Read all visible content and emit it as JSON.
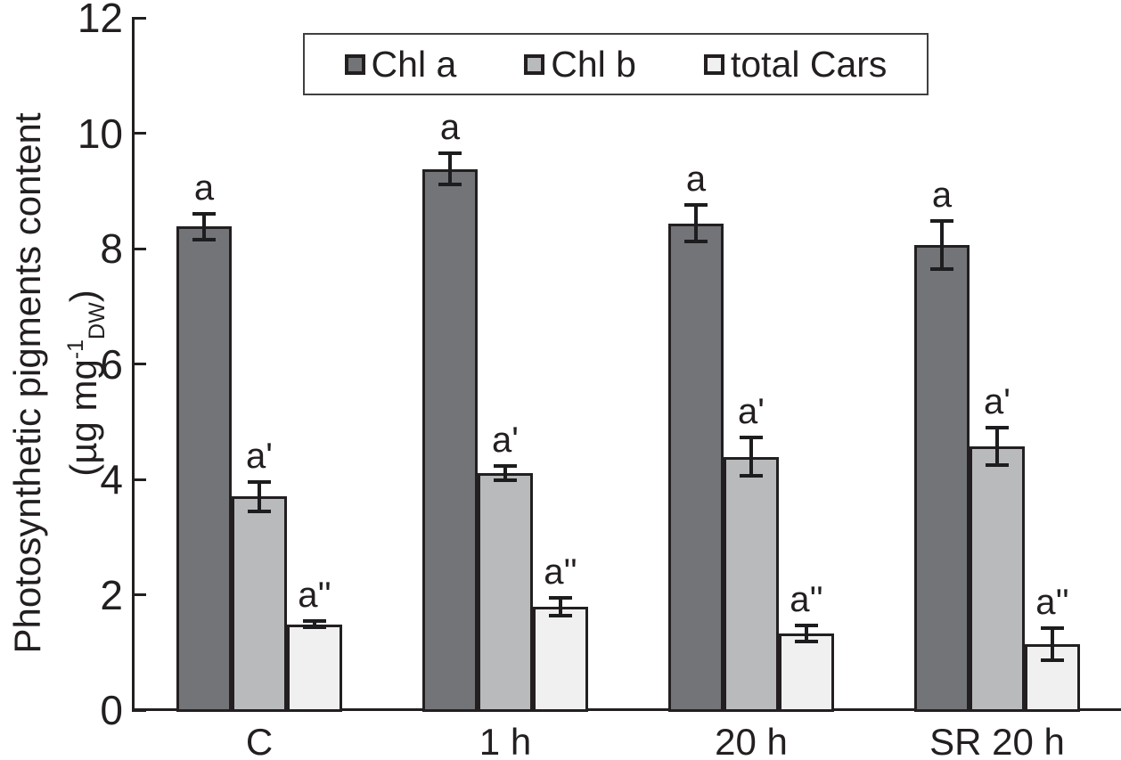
{
  "figure": {
    "background": "#ffffff",
    "ink_color": "#231f20"
  },
  "chart_data": {
    "type": "bar",
    "ylabel_line1": "Photosynthetic pigments content",
    "ylabel_unit_prefix": "(µg mg",
    "ylabel_unit_sup": "-1",
    "ylabel_unit_sub": "DW",
    "ylabel_unit_suffix": ")",
    "ylim": [
      0,
      12
    ],
    "yticks": [
      0,
      2,
      4,
      6,
      8,
      10,
      12
    ],
    "grid": false,
    "legend_position": "top-center",
    "categories": [
      "C",
      "1 h",
      "20 h",
      "SR 20 h"
    ],
    "series": [
      {
        "name": "Chl a",
        "color": "#737478",
        "values": [
          8.38,
          9.38,
          8.44,
          8.06
        ],
        "errors": [
          0.22,
          0.27,
          0.31,
          0.42
        ],
        "letters": [
          "a",
          "a",
          "a",
          "a"
        ]
      },
      {
        "name": "Chl b",
        "color": "#b9babc",
        "values": [
          3.7,
          4.11,
          4.39,
          4.57
        ],
        "errors": [
          0.25,
          0.12,
          0.33,
          0.33
        ],
        "letters": [
          "a'",
          "a'",
          "a'",
          "a'"
        ]
      },
      {
        "name": "total Cars",
        "color": "#f0f0f1",
        "values": [
          1.49,
          1.79,
          1.33,
          1.14
        ],
        "errors": [
          0.05,
          0.15,
          0.14,
          0.28
        ],
        "letters": [
          "a''",
          "a''",
          "a''",
          "a''"
        ]
      }
    ]
  }
}
